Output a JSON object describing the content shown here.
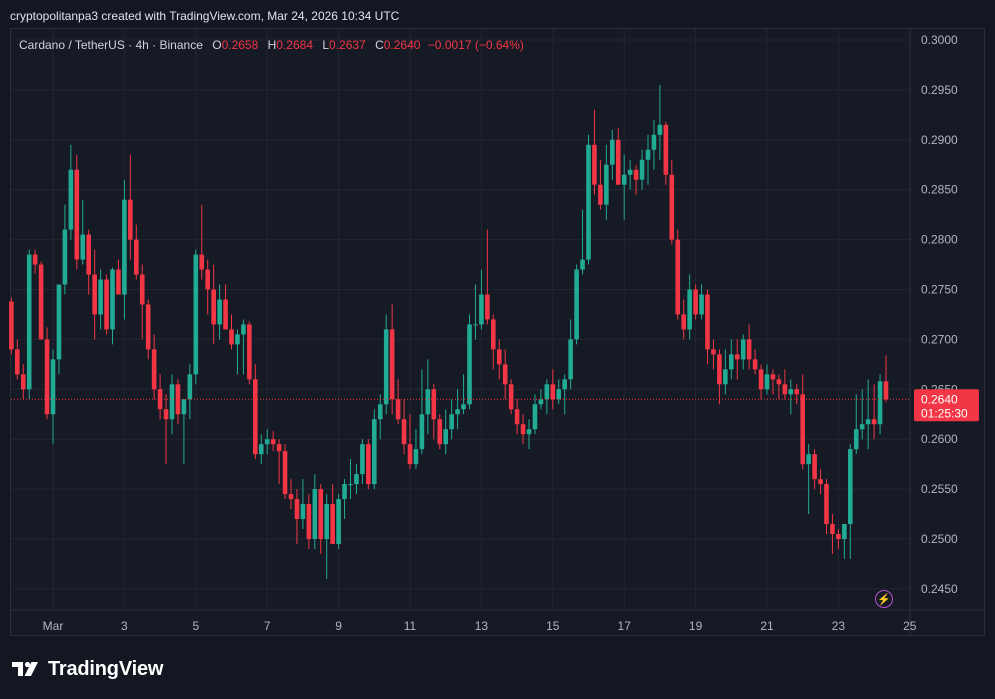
{
  "header": {
    "text": "cryptopolitanpa3 created with TradingView.com, Mar 24, 2026 10:34 UTC"
  },
  "legend": {
    "symbol": "Cardano / TetherUS · 4h · Binance",
    "open_label": "O",
    "open": "0.2658",
    "high_label": "H",
    "high": "0.2684",
    "low_label": "L",
    "low": "0.2637",
    "close_label": "C",
    "close": "0.2640",
    "change": "−0.0017 (−0.64%)"
  },
  "price_tag": {
    "price": "0.2640",
    "countdown": "01:25:30"
  },
  "footer": {
    "brand": "TradingView"
  },
  "colors": {
    "up": "#22ab94",
    "down": "#f23645",
    "grid": "#232632",
    "axis_text": "#b2b5be",
    "price_tag_bg": "#f23645"
  },
  "icons": {
    "logo": "tradingview-logo-icon",
    "bolt": "lightning-icon"
  },
  "chart_data": {
    "type": "candlestick",
    "title": "Cardano / TetherUS · 4h · Binance",
    "xlabel": "",
    "ylabel": "",
    "ylim": [
      0.2425,
      0.3015
    ],
    "y_ticks": [
      "0.2450",
      "0.2500",
      "0.2550",
      "0.2600",
      "0.2650",
      "0.2700",
      "0.2750",
      "0.2800",
      "0.2850",
      "0.2900",
      "0.2950",
      "0.3000"
    ],
    "x_ticks": [
      {
        "label": "Mar",
        "x": 0
      },
      {
        "label": "3",
        "x": 12
      },
      {
        "label": "5",
        "x": 24
      },
      {
        "label": "7",
        "x": 36
      },
      {
        "label": "9",
        "x": 48
      },
      {
        "label": "11",
        "x": 60
      },
      {
        "label": "13",
        "x": 72
      },
      {
        "label": "15",
        "x": 84
      },
      {
        "label": "17",
        "x": 96
      },
      {
        "label": "19",
        "x": 108
      },
      {
        "label": "21",
        "x": 120
      },
      {
        "label": "23",
        "x": 132
      },
      {
        "label": "25",
        "x": 144
      }
    ],
    "grid": true,
    "last_price": 0.264,
    "candles": [
      [
        -7,
        0.2738,
        0.2742,
        0.2685,
        0.269
      ],
      [
        -6,
        0.269,
        0.27,
        0.266,
        0.2665
      ],
      [
        -5,
        0.2665,
        0.2675,
        0.264,
        0.265
      ],
      [
        -4,
        0.265,
        0.279,
        0.264,
        0.2785
      ],
      [
        -3,
        0.2785,
        0.279,
        0.2766,
        0.2775
      ],
      [
        -2,
        0.2775,
        0.2778,
        0.27,
        0.27
      ],
      [
        -1,
        0.27,
        0.2712,
        0.262,
        0.2625
      ],
      [
        0,
        0.2625,
        0.269,
        0.2595,
        0.268
      ],
      [
        1,
        0.268,
        0.2755,
        0.2665,
        0.2755
      ],
      [
        2,
        0.2755,
        0.2835,
        0.2745,
        0.281
      ],
      [
        3,
        0.281,
        0.2895,
        0.28,
        0.287
      ],
      [
        4,
        0.287,
        0.2885,
        0.277,
        0.278
      ],
      [
        5,
        0.278,
        0.284,
        0.2775,
        0.2805
      ],
      [
        6,
        0.2805,
        0.281,
        0.2745,
        0.2765
      ],
      [
        7,
        0.2765,
        0.279,
        0.27,
        0.2725
      ],
      [
        8,
        0.2725,
        0.277,
        0.271,
        0.276
      ],
      [
        9,
        0.276,
        0.2765,
        0.2705,
        0.271
      ],
      [
        10,
        0.271,
        0.2772,
        0.2695,
        0.277
      ],
      [
        11,
        0.277,
        0.278,
        0.2745,
        0.2745
      ],
      [
        12,
        0.2745,
        0.286,
        0.272,
        0.284
      ],
      [
        13,
        0.284,
        0.2885,
        0.278,
        0.28
      ],
      [
        14,
        0.28,
        0.2815,
        0.276,
        0.2765
      ],
      [
        15,
        0.2765,
        0.2775,
        0.27,
        0.2735
      ],
      [
        16,
        0.2735,
        0.274,
        0.268,
        0.269
      ],
      [
        17,
        0.269,
        0.2705,
        0.264,
        0.265
      ],
      [
        18,
        0.265,
        0.2665,
        0.262,
        0.263
      ],
      [
        19,
        0.263,
        0.2645,
        0.2575,
        0.262
      ],
      [
        20,
        0.262,
        0.2665,
        0.2605,
        0.2655
      ],
      [
        21,
        0.2655,
        0.266,
        0.2615,
        0.2625
      ],
      [
        22,
        0.2625,
        0.264,
        0.2575,
        0.264
      ],
      [
        23,
        0.264,
        0.2675,
        0.262,
        0.2665
      ],
      [
        24,
        0.2665,
        0.279,
        0.2655,
        0.2785
      ],
      [
        25,
        0.2785,
        0.2835,
        0.276,
        0.277
      ],
      [
        26,
        0.277,
        0.278,
        0.2725,
        0.275
      ],
      [
        27,
        0.275,
        0.2775,
        0.2695,
        0.2715
      ],
      [
        28,
        0.2715,
        0.2755,
        0.27,
        0.274
      ],
      [
        29,
        0.274,
        0.2755,
        0.271,
        0.271
      ],
      [
        30,
        0.271,
        0.2725,
        0.269,
        0.2695
      ],
      [
        31,
        0.2695,
        0.271,
        0.2665,
        0.2705
      ],
      [
        32,
        0.2705,
        0.272,
        0.2665,
        0.2715
      ],
      [
        33,
        0.2715,
        0.2718,
        0.2655,
        0.266
      ],
      [
        34,
        0.266,
        0.2675,
        0.258,
        0.2585
      ],
      [
        35,
        0.2585,
        0.2605,
        0.2575,
        0.2595
      ],
      [
        36,
        0.2595,
        0.261,
        0.2585,
        0.26
      ],
      [
        37,
        0.26,
        0.2608,
        0.2588,
        0.2595
      ],
      [
        38,
        0.2595,
        0.26,
        0.2555,
        0.2588
      ],
      [
        39,
        0.2588,
        0.2595,
        0.254,
        0.2545
      ],
      [
        40,
        0.2545,
        0.256,
        0.253,
        0.254
      ],
      [
        41,
        0.254,
        0.255,
        0.2495,
        0.252
      ],
      [
        42,
        0.252,
        0.256,
        0.251,
        0.2535
      ],
      [
        43,
        0.2535,
        0.2545,
        0.249,
        0.25
      ],
      [
        44,
        0.25,
        0.2565,
        0.249,
        0.255
      ],
      [
        45,
        0.255,
        0.2555,
        0.2485,
        0.25
      ],
      [
        46,
        0.25,
        0.2545,
        0.246,
        0.2535
      ],
      [
        47,
        0.2535,
        0.2555,
        0.2495,
        0.2495
      ],
      [
        48,
        0.2495,
        0.2545,
        0.249,
        0.254
      ],
      [
        49,
        0.254,
        0.256,
        0.252,
        0.2555
      ],
      [
        50,
        0.2555,
        0.258,
        0.254,
        0.2555
      ],
      [
        51,
        0.2555,
        0.2575,
        0.2545,
        0.2565
      ],
      [
        52,
        0.2565,
        0.26,
        0.2555,
        0.2595
      ],
      [
        53,
        0.2595,
        0.26,
        0.255,
        0.2555
      ],
      [
        54,
        0.2555,
        0.263,
        0.255,
        0.262
      ],
      [
        55,
        0.262,
        0.2645,
        0.26,
        0.2635
      ],
      [
        56,
        0.2635,
        0.2725,
        0.2625,
        0.271
      ],
      [
        57,
        0.271,
        0.2735,
        0.2625,
        0.264
      ],
      [
        58,
        0.264,
        0.266,
        0.2615,
        0.262
      ],
      [
        59,
        0.262,
        0.264,
        0.2585,
        0.2595
      ],
      [
        60,
        0.2595,
        0.2625,
        0.257,
        0.2575
      ],
      [
        61,
        0.2575,
        0.261,
        0.257,
        0.259
      ],
      [
        62,
        0.259,
        0.267,
        0.2585,
        0.2625
      ],
      [
        63,
        0.2625,
        0.268,
        0.2605,
        0.265
      ],
      [
        64,
        0.265,
        0.2655,
        0.26,
        0.262
      ],
      [
        65,
        0.262,
        0.2625,
        0.259,
        0.2595
      ],
      [
        66,
        0.2595,
        0.263,
        0.2585,
        0.261
      ],
      [
        67,
        0.261,
        0.264,
        0.26,
        0.2625
      ],
      [
        68,
        0.2625,
        0.265,
        0.261,
        0.263
      ],
      [
        69,
        0.263,
        0.2665,
        0.2625,
        0.2635
      ],
      [
        70,
        0.2635,
        0.2725,
        0.263,
        0.2715
      ],
      [
        71,
        0.2715,
        0.2755,
        0.27,
        0.2715
      ],
      [
        72,
        0.2715,
        0.277,
        0.271,
        0.2745
      ],
      [
        73,
        0.2745,
        0.281,
        0.2715,
        0.272
      ],
      [
        74,
        0.272,
        0.2725,
        0.267,
        0.269
      ],
      [
        75,
        0.269,
        0.27,
        0.266,
        0.2675
      ],
      [
        76,
        0.2675,
        0.269,
        0.264,
        0.2655
      ],
      [
        77,
        0.2655,
        0.266,
        0.2625,
        0.263
      ],
      [
        78,
        0.263,
        0.264,
        0.2605,
        0.2615
      ],
      [
        79,
        0.2615,
        0.2625,
        0.2595,
        0.2605
      ],
      [
        80,
        0.2605,
        0.262,
        0.259,
        0.261
      ],
      [
        81,
        0.261,
        0.2645,
        0.2605,
        0.2635
      ],
      [
        82,
        0.2635,
        0.265,
        0.263,
        0.264
      ],
      [
        83,
        0.264,
        0.266,
        0.2625,
        0.2655
      ],
      [
        84,
        0.2655,
        0.267,
        0.263,
        0.264
      ],
      [
        85,
        0.264,
        0.266,
        0.2635,
        0.265
      ],
      [
        86,
        0.265,
        0.2665,
        0.2625,
        0.266
      ],
      [
        87,
        0.266,
        0.272,
        0.265,
        0.27
      ],
      [
        88,
        0.27,
        0.2775,
        0.2695,
        0.277
      ],
      [
        89,
        0.277,
        0.283,
        0.2765,
        0.278
      ],
      [
        90,
        0.278,
        0.2905,
        0.2775,
        0.2895
      ],
      [
        91,
        0.2895,
        0.293,
        0.2845,
        0.2855
      ],
      [
        92,
        0.2855,
        0.288,
        0.283,
        0.2835
      ],
      [
        93,
        0.2835,
        0.2895,
        0.282,
        0.2875
      ],
      [
        94,
        0.2875,
        0.291,
        0.286,
        0.29
      ],
      [
        95,
        0.29,
        0.2912,
        0.2855,
        0.2855
      ],
      [
        96,
        0.2855,
        0.2885,
        0.282,
        0.2865
      ],
      [
        97,
        0.2865,
        0.288,
        0.285,
        0.287
      ],
      [
        98,
        0.287,
        0.2875,
        0.2845,
        0.286
      ],
      [
        99,
        0.286,
        0.289,
        0.285,
        0.288
      ],
      [
        100,
        0.288,
        0.2905,
        0.2855,
        0.289
      ],
      [
        101,
        0.289,
        0.292,
        0.287,
        0.2905
      ],
      [
        102,
        0.2905,
        0.2955,
        0.288,
        0.2915
      ],
      [
        103,
        0.2915,
        0.2918,
        0.2855,
        0.2865
      ],
      [
        104,
        0.2865,
        0.288,
        0.2795,
        0.28
      ],
      [
        105,
        0.28,
        0.281,
        0.272,
        0.2725
      ],
      [
        106,
        0.2725,
        0.274,
        0.27,
        0.271
      ],
      [
        107,
        0.271,
        0.2765,
        0.27,
        0.275
      ],
      [
        108,
        0.275,
        0.2755,
        0.272,
        0.2725
      ],
      [
        109,
        0.2725,
        0.2755,
        0.272,
        0.2745
      ],
      [
        110,
        0.2745,
        0.275,
        0.2675,
        0.269
      ],
      [
        111,
        0.269,
        0.27,
        0.267,
        0.2685
      ],
      [
        112,
        0.2685,
        0.269,
        0.2635,
        0.2655
      ],
      [
        113,
        0.2655,
        0.269,
        0.2645,
        0.267
      ],
      [
        114,
        0.267,
        0.27,
        0.266,
        0.2685
      ],
      [
        115,
        0.2685,
        0.27,
        0.266,
        0.268
      ],
      [
        116,
        0.268,
        0.2705,
        0.267,
        0.27
      ],
      [
        117,
        0.27,
        0.2715,
        0.267,
        0.268
      ],
      [
        118,
        0.268,
        0.269,
        0.2665,
        0.267
      ],
      [
        119,
        0.267,
        0.2675,
        0.264,
        0.265
      ],
      [
        120,
        0.265,
        0.2675,
        0.2645,
        0.2665
      ],
      [
        121,
        0.2665,
        0.267,
        0.2645,
        0.266
      ],
      [
        122,
        0.266,
        0.2665,
        0.264,
        0.2655
      ],
      [
        123,
        0.2655,
        0.267,
        0.264,
        0.2645
      ],
      [
        124,
        0.2645,
        0.266,
        0.2625,
        0.265
      ],
      [
        125,
        0.265,
        0.2655,
        0.2635,
        0.2645
      ],
      [
        126,
        0.2645,
        0.2665,
        0.257,
        0.2575
      ],
      [
        127,
        0.2575,
        0.2595,
        0.2525,
        0.2585
      ],
      [
        128,
        0.2585,
        0.259,
        0.255,
        0.256
      ],
      [
        129,
        0.256,
        0.257,
        0.2545,
        0.2555
      ],
      [
        130,
        0.2555,
        0.256,
        0.2505,
        0.2515
      ],
      [
        131,
        0.2515,
        0.2525,
        0.2485,
        0.2505
      ],
      [
        132,
        0.2505,
        0.251,
        0.249,
        0.25
      ],
      [
        133,
        0.25,
        0.251,
        0.248,
        0.2515
      ],
      [
        134,
        0.2515,
        0.2595,
        0.248,
        0.259
      ],
      [
        135,
        0.259,
        0.2645,
        0.2585,
        0.261
      ],
      [
        136,
        0.261,
        0.265,
        0.26,
        0.2615
      ],
      [
        137,
        0.2615,
        0.266,
        0.259,
        0.262
      ],
      [
        138,
        0.262,
        0.2655,
        0.26,
        0.2615
      ],
      [
        139,
        0.2615,
        0.2665,
        0.2605,
        0.2658
      ],
      [
        140,
        0.2658,
        0.2684,
        0.2637,
        0.264
      ]
    ]
  }
}
